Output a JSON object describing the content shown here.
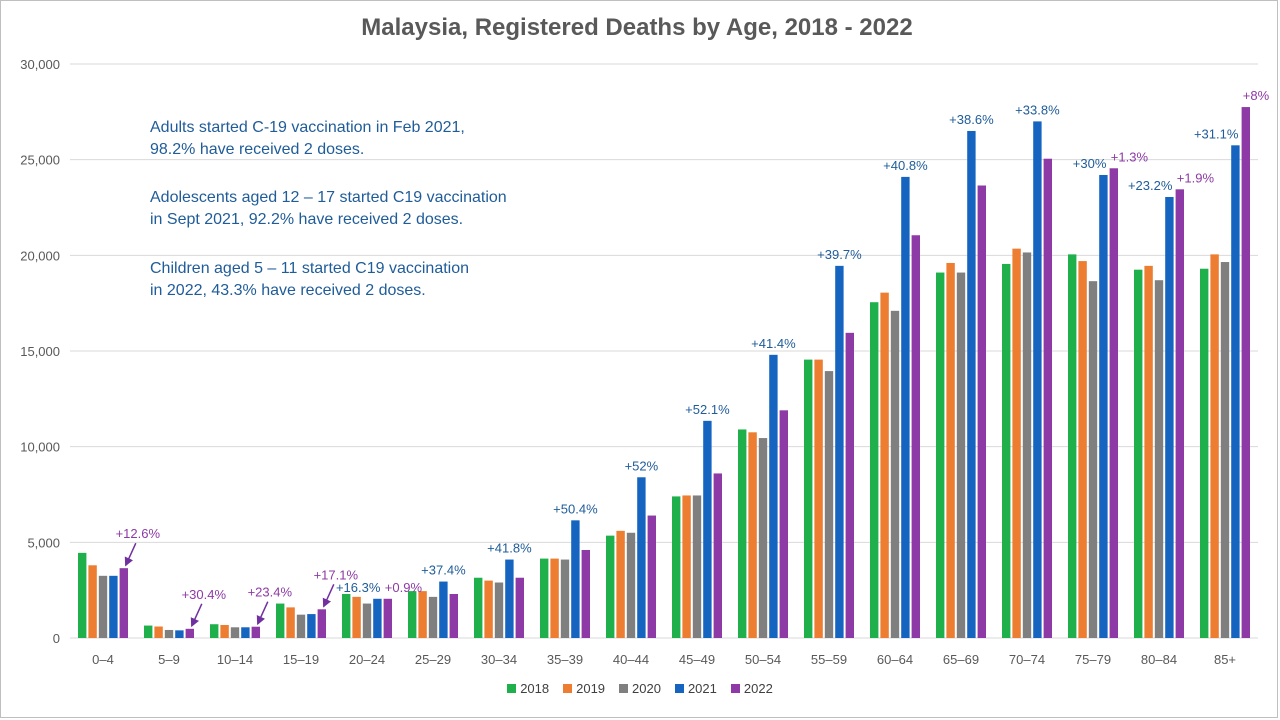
{
  "chart_data": {
    "type": "bar",
    "title": "Malaysia, Registered Deaths by Age, 2018 - 2022",
    "xlabel": "",
    "ylabel": "",
    "ylim": [
      0,
      30000
    ],
    "yticks": [
      0,
      5000,
      10000,
      15000,
      20000,
      25000,
      30000
    ],
    "ytick_labels": [
      "0",
      "5,000",
      "10,000",
      "15,000",
      "20,000",
      "25,000",
      "30,000"
    ],
    "grid": true,
    "legend_position": "bottom",
    "categories": [
      "0–4",
      "5–9",
      "10–14",
      "15–19",
      "20–24",
      "25–29",
      "30–34",
      "35–39",
      "40–44",
      "45–49",
      "50–54",
      "55–59",
      "60–64",
      "65–69",
      "70–74",
      "75–79",
      "80–84",
      "85+"
    ],
    "series": [
      {
        "name": "2018",
        "color": "#1fb04b",
        "values": [
          4450,
          650,
          720,
          1800,
          2300,
          2450,
          3150,
          4150,
          5350,
          7400,
          10900,
          14550,
          17550,
          19100,
          19550,
          20050,
          19250,
          19300
        ]
      },
      {
        "name": "2019",
        "color": "#ed7d31",
        "values": [
          3800,
          600,
          680,
          1600,
          2150,
          2450,
          3000,
          4150,
          5600,
          7450,
          10750,
          14550,
          18050,
          19600,
          20350,
          19700,
          19450,
          20050
        ]
      },
      {
        "name": "2020",
        "color": "#7f7f7f",
        "values": [
          3250,
          420,
          560,
          1220,
          1800,
          2150,
          2900,
          4100,
          5500,
          7450,
          10450,
          13950,
          17100,
          19100,
          20150,
          18650,
          18700,
          19650
        ]
      },
      {
        "name": "2021",
        "color": "#1565c0",
        "values": [
          3250,
          400,
          560,
          1250,
          2050,
          2950,
          4100,
          6150,
          8400,
          11350,
          14800,
          19450,
          24100,
          26500,
          27000,
          24200,
          23050,
          25750
        ]
      },
      {
        "name": "2022",
        "color": "#8e3aa6",
        "values": [
          3650,
          480,
          590,
          1500,
          2050,
          2300,
          3150,
          4600,
          6400,
          8600,
          11900,
          15950,
          21050,
          23650,
          25050,
          24550,
          23450,
          27750
        ]
      }
    ],
    "annotations": [
      {
        "category": "0–4",
        "series": "2022",
        "text": "+12.6%",
        "color": "#8e3aa6",
        "arrow": true
      },
      {
        "category": "5–9",
        "series": "2022",
        "text": "+30.4%",
        "color": "#8e3aa6",
        "arrow": true
      },
      {
        "category": "10–14",
        "series": "2022",
        "text": "+23.4%",
        "color": "#8e3aa6",
        "arrow": true
      },
      {
        "category": "15–19",
        "series": "2022",
        "text": "+17.1%",
        "color": "#8e3aa6",
        "arrow": true
      },
      {
        "category": "20–24",
        "series": "2021",
        "text": "+16.3%",
        "color": "#1f5c99",
        "arrow": false
      },
      {
        "category": "20–24",
        "series": "2022",
        "text": "+0.9%",
        "color": "#8e3aa6",
        "arrow": false
      },
      {
        "category": "25–29",
        "series": "2021",
        "text": "+37.4%",
        "color": "#1f5c99",
        "arrow": false
      },
      {
        "category": "30–34",
        "series": "2021",
        "text": "+41.8%",
        "color": "#1f5c99",
        "arrow": false
      },
      {
        "category": "35–39",
        "series": "2021",
        "text": "+50.4%",
        "color": "#1f5c99",
        "arrow": false
      },
      {
        "category": "40–44",
        "series": "2021",
        "text": "+52%",
        "color": "#1f5c99",
        "arrow": false
      },
      {
        "category": "45–49",
        "series": "2021",
        "text": "+52.1%",
        "color": "#1f5c99",
        "arrow": false
      },
      {
        "category": "50–54",
        "series": "2021",
        "text": "+41.4%",
        "color": "#1f5c99",
        "arrow": false
      },
      {
        "category": "55–59",
        "series": "2021",
        "text": "+39.7%",
        "color": "#1f5c99",
        "arrow": false
      },
      {
        "category": "60–64",
        "series": "2021",
        "text": "+40.8%",
        "color": "#1f5c99",
        "arrow": false
      },
      {
        "category": "65–69",
        "series": "2021",
        "text": "+38.6%",
        "color": "#1f5c99",
        "arrow": false
      },
      {
        "category": "70–74",
        "series": "2021",
        "text": "+33.8%",
        "color": "#1f5c99",
        "arrow": false
      },
      {
        "category": "75–79",
        "series": "2021",
        "text": "+30%",
        "color": "#1f5c99",
        "arrow": false
      },
      {
        "category": "75–79",
        "series": "2022",
        "text": "+1.3%",
        "color": "#8e3aa6",
        "arrow": false
      },
      {
        "category": "80–84",
        "series": "2021",
        "text": "+23.2%",
        "color": "#1f5c99",
        "arrow": false
      },
      {
        "category": "80–84",
        "series": "2022",
        "text": "+1.9%",
        "color": "#8e3aa6",
        "arrow": false
      },
      {
        "category": "85+",
        "series": "2021",
        "text": "+31.1%",
        "color": "#1f5c99",
        "arrow": false
      },
      {
        "category": "85+",
        "series": "2022",
        "text": "+8%",
        "color": "#8e3aa6",
        "arrow": false
      }
    ]
  },
  "notes": [
    {
      "line1": "Adults started C-19 vaccination in Feb 2021,",
      "line2": "98.2% have received 2 doses."
    },
    {
      "line1": "Adolescents aged 12 – 17 started C19 vaccination",
      "line2": "in Sept 2021, 92.2% have received 2 doses."
    },
    {
      "line1": "Children aged 5 – 11 started C19 vaccination",
      "line2": "in 2022, 43.3% have received 2 doses."
    }
  ]
}
